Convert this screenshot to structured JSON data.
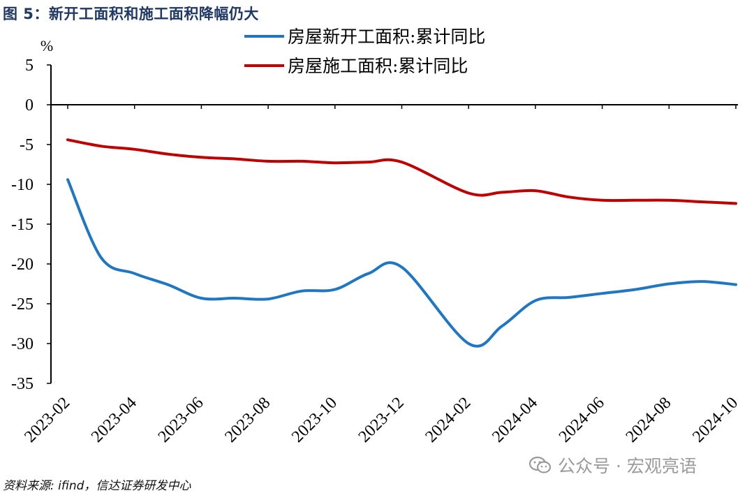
{
  "figure": {
    "title": "图 5：新开工面积和施工面积降幅仍大",
    "source": "资料来源: ifind，信达证券研发中心",
    "watermark": "公众号 · 宏观亮语"
  },
  "chart_data": {
    "type": "line",
    "title": "",
    "xlabel": "",
    "ylabel": "%",
    "ylim": [
      -35,
      5
    ],
    "yticks": [
      5,
      0,
      -5,
      -10,
      -15,
      -20,
      -25,
      -30,
      -35
    ],
    "xtick_labels": [
      "2023-02",
      "2023-04",
      "2023-06",
      "2023-08",
      "2023-10",
      "2023-12",
      "2024-02",
      "2024-04",
      "2024-06",
      "2024-08",
      "2024-10"
    ],
    "x": [
      "2023-02",
      "2023-03",
      "2023-04",
      "2023-05",
      "2023-06",
      "2023-07",
      "2023-08",
      "2023-09",
      "2023-10",
      "2023-11",
      "2023-12",
      "2024-02",
      "2024-03",
      "2024-04",
      "2024-05",
      "2024-06",
      "2024-07",
      "2024-08",
      "2024-09",
      "2024-10"
    ],
    "grid": false,
    "legend_position": "top",
    "series": [
      {
        "name": "房屋新开工面积:累计同比",
        "color": "#1f77c4",
        "values": [
          -9.4,
          -19.2,
          -21.2,
          -22.6,
          -24.3,
          -24.3,
          -24.4,
          -23.4,
          -23.2,
          -21.2,
          -20.4,
          -30.0,
          -27.8,
          -24.6,
          -24.2,
          -23.7,
          -23.2,
          -22.5,
          -22.2,
          -22.6
        ]
      },
      {
        "name": "房屋施工面积:累计同比",
        "color": "#c00000",
        "values": [
          -4.4,
          -5.2,
          -5.6,
          -6.2,
          -6.6,
          -6.8,
          -7.1,
          -7.1,
          -7.3,
          -7.2,
          -7.2,
          -11.1,
          -11.0,
          -10.8,
          -11.6,
          -12.0,
          -12.0,
          -12.0,
          -12.2,
          -12.4
        ]
      }
    ],
    "colors": {
      "axis": "#000000",
      "title": "#1f3864"
    }
  }
}
